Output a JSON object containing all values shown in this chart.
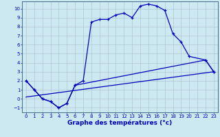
{
  "xlabel": "Graphe des températures (°c)",
  "line1_x": [
    0,
    1,
    2,
    3,
    4,
    5,
    6,
    7,
    8,
    9,
    10,
    11,
    12,
    13,
    14,
    15,
    16,
    17,
    18,
    19,
    20,
    22,
    23
  ],
  "line1_y": [
    2.0,
    1.0,
    0.0,
    -0.3,
    -1.0,
    -0.5,
    1.5,
    2.0,
    8.5,
    8.8,
    8.8,
    9.3,
    9.5,
    9.0,
    10.3,
    10.5,
    10.3,
    9.8,
    7.2,
    6.3,
    4.7,
    4.3,
    3.0
  ],
  "line2_x": [
    0,
    1,
    2,
    3,
    4,
    5,
    6,
    22,
    23
  ],
  "line2_y": [
    2.0,
    1.0,
    0.0,
    -0.3,
    -1.0,
    -0.5,
    1.5,
    4.3,
    3.0
  ],
  "line3_x": [
    0,
    23
  ],
  "line3_y": [
    0.2,
    3.0
  ],
  "ylim": [
    -1.5,
    10.8
  ],
  "xlim": [
    -0.5,
    23.5
  ],
  "yticks": [
    -1,
    0,
    1,
    2,
    3,
    4,
    5,
    6,
    7,
    8,
    9,
    10
  ],
  "xticks": [
    0,
    1,
    2,
    3,
    4,
    5,
    6,
    7,
    8,
    9,
    10,
    11,
    12,
    13,
    14,
    15,
    16,
    17,
    18,
    19,
    20,
    21,
    22,
    23
  ],
  "bg_color": "#cce8f0",
  "grid_color": "#aabccc",
  "line_color": "#0000bb",
  "tick_fontsize": 5.0,
  "xlabel_fontsize": 6.5,
  "linewidth": 0.9,
  "markersize": 3.0
}
